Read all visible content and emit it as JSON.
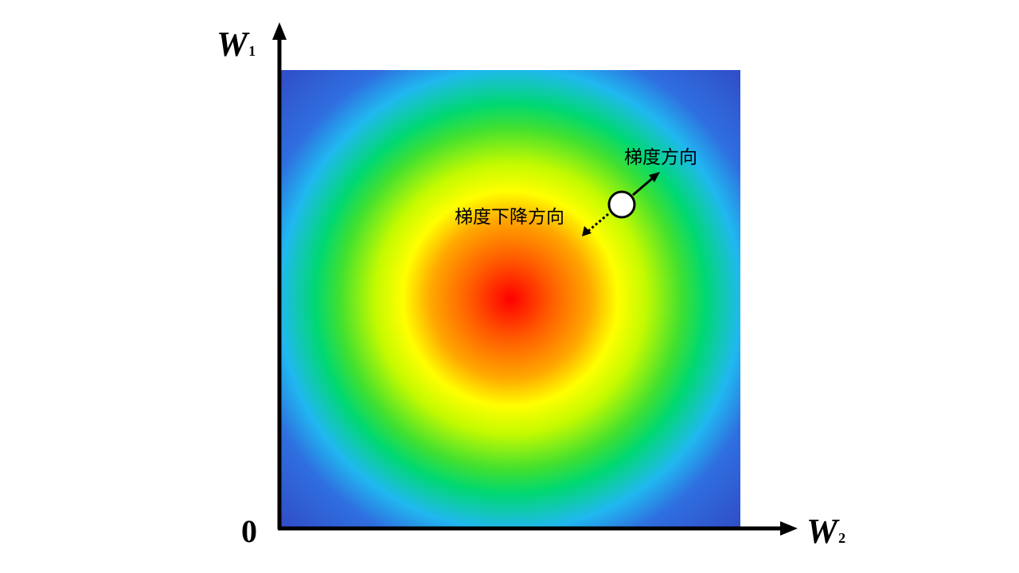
{
  "axes": {
    "y_label": "W",
    "y_subscript": "1",
    "x_label": "W",
    "x_subscript": "2",
    "origin": "0"
  },
  "annotations": {
    "gradient_direction": "梯度方向",
    "descent_direction": "梯度下降方向"
  },
  "colors": {
    "center": "#ff0000",
    "mid": "#ffff00",
    "ring": "#00d872",
    "outer": "#20b8f0",
    "corner": "#3050c8"
  }
}
